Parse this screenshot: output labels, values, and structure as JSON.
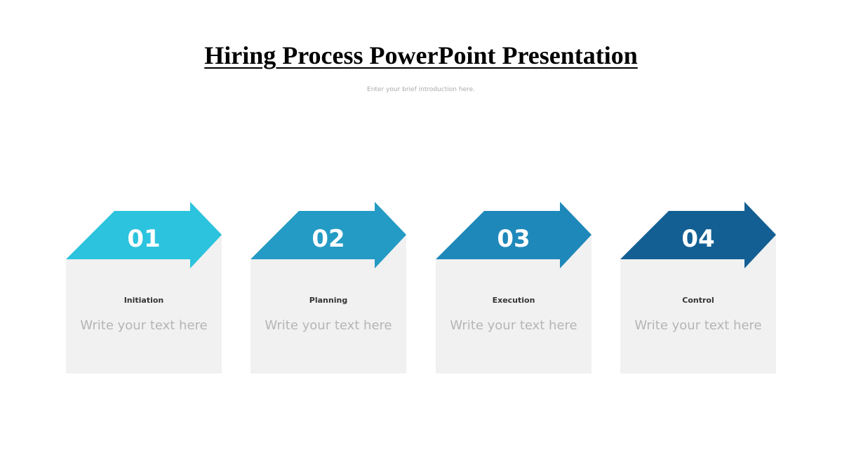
{
  "title": "Hiring Process PowerPoint Presentation",
  "subtitle": "Enter your brief introduction here.",
  "steps": [
    {
      "number": "01",
      "name": "Initiation",
      "text": "Write your text here",
      "color": "#2cc3de"
    },
    {
      "number": "02",
      "name": "Planning",
      "text": "Write your text here",
      "color": "#249bc4"
    },
    {
      "number": "03",
      "name": "Execution",
      "text": "Write your text here",
      "color": "#1f88ba"
    },
    {
      "number": "04",
      "name": "Control",
      "text": "Write your text here",
      "color": "#135f93"
    }
  ],
  "card_background": "#f1f1f1"
}
